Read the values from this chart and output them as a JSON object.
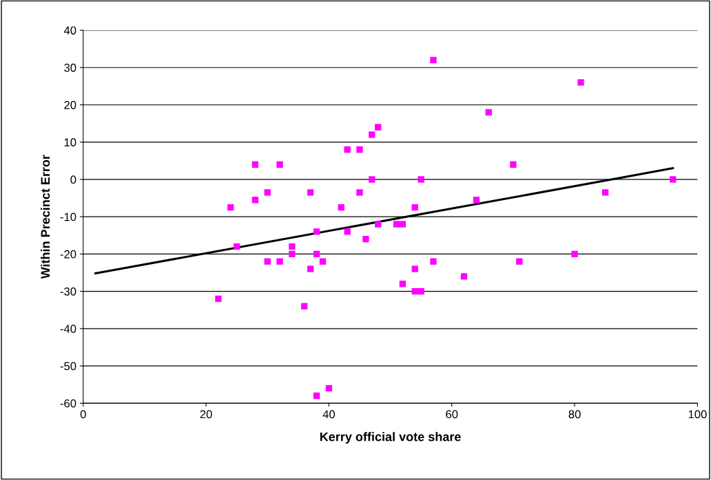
{
  "chart_data": {
    "type": "scatter",
    "xlabel": "Kerry official vote share",
    "ylabel": "Within Precinct Error",
    "xlim": [
      0,
      100
    ],
    "xticks": [
      0,
      20,
      40,
      60,
      80,
      100
    ],
    "ylim": [
      -60,
      40
    ],
    "yticks": [
      -60,
      -50,
      -40,
      -30,
      -20,
      -10,
      0,
      10,
      20,
      30,
      40
    ],
    "grid": "y",
    "legend": false,
    "series": [
      {
        "marker": "square",
        "color": "#ff00ff",
        "x": [
          22,
          24,
          25,
          28,
          28,
          30,
          30,
          32,
          32,
          34,
          34,
          36,
          37,
          37,
          38,
          38,
          38,
          39,
          40,
          42,
          43,
          43,
          45,
          45,
          46,
          47,
          47,
          48,
          48,
          51,
          52,
          52,
          54,
          54,
          54,
          55,
          55,
          57,
          57,
          62,
          64,
          66,
          70,
          71,
          80,
          81,
          85,
          96
        ],
        "values": [
          -32,
          -7.5,
          -18,
          4,
          -5.5,
          -3.5,
          -22,
          4,
          -22,
          -18,
          -20,
          -34,
          -3.5,
          -24,
          -14,
          -20,
          -58,
          -22,
          -56,
          -7.5,
          8,
          -14,
          8,
          -3.5,
          -16,
          12,
          0,
          14,
          -12,
          -12,
          -12,
          -28,
          -7.5,
          -24,
          -30,
          0,
          -30,
          32,
          -22,
          -26,
          -5.5,
          18,
          4,
          -22,
          -20,
          26,
          -3.5,
          0
        ]
      },
      {
        "type": "line",
        "marker": "none",
        "color": "#000000",
        "x": [
          2,
          96
        ],
        "values": [
          -25.2,
          3
        ]
      }
    ]
  }
}
